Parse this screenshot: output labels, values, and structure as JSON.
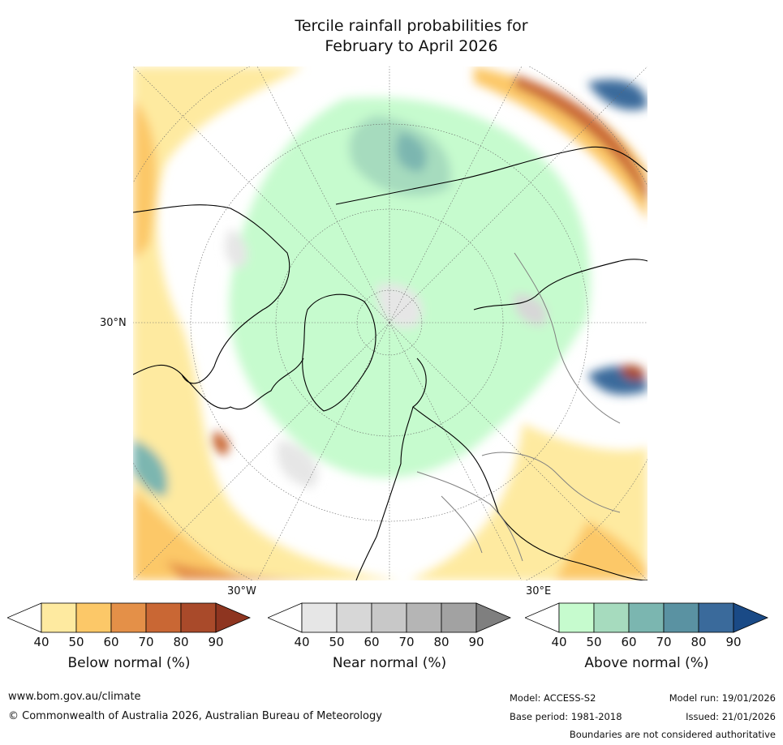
{
  "title_line1": "Tercile rainfall probabilities for",
  "title_line2": "February to April 2026",
  "map_labels": {
    "lat_30n": "30°N",
    "lon_30w": "30°W",
    "lon_30e": "30°E"
  },
  "colorbars": [
    {
      "label": "Below normal (%)",
      "ticks": [
        "40",
        "50",
        "60",
        "70",
        "80",
        "90"
      ],
      "colors": [
        "#ffffff",
        "#feeaa0",
        "#fcc868",
        "#e49048",
        "#c96734",
        "#a94a2a",
        "#8e3520"
      ]
    },
    {
      "label": "Near normal (%)",
      "ticks": [
        "40",
        "50",
        "60",
        "70",
        "80",
        "90"
      ],
      "colors": [
        "#ffffff",
        "#e6e6e6",
        "#d7d7d7",
        "#c8c8c8",
        "#b5b5b5",
        "#a2a2a2",
        "#7f7f7f"
      ]
    },
    {
      "label": "Above normal (%)",
      "ticks": [
        "40",
        "50",
        "60",
        "70",
        "80",
        "90"
      ],
      "colors": [
        "#ffffff",
        "#c6fbce",
        "#a6dbbe",
        "#7bb6b0",
        "#5a92a2",
        "#3a6a9b",
        "#1a4a86"
      ]
    }
  ],
  "footer": {
    "website": "www.bom.gov.au/climate",
    "copyright": "© Commonwealth of Australia 2026, Australian Bureau of Meteorology",
    "model": "Model: ACCESS-S2",
    "base_period": "Base period: 1981-2018",
    "model_run": "Model run: 19/01/2026",
    "issued": "Issued: 21/01/2026",
    "disclaimer": "Boundaries are not considered authoritative"
  }
}
